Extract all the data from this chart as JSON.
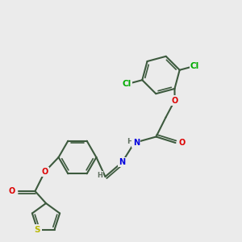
{
  "background_color": "#ebebeb",
  "bond_color": "#3d5a3e",
  "bond_width": 1.5,
  "atom_colors": {
    "C": "#3d5a3e",
    "N": "#0000dd",
    "O": "#dd0000",
    "S": "#b8b800",
    "Cl": "#00aa00",
    "H": "#607060"
  },
  "font_size": 7.5,
  "figsize": [
    3.0,
    3.0
  ],
  "dpi": 100
}
